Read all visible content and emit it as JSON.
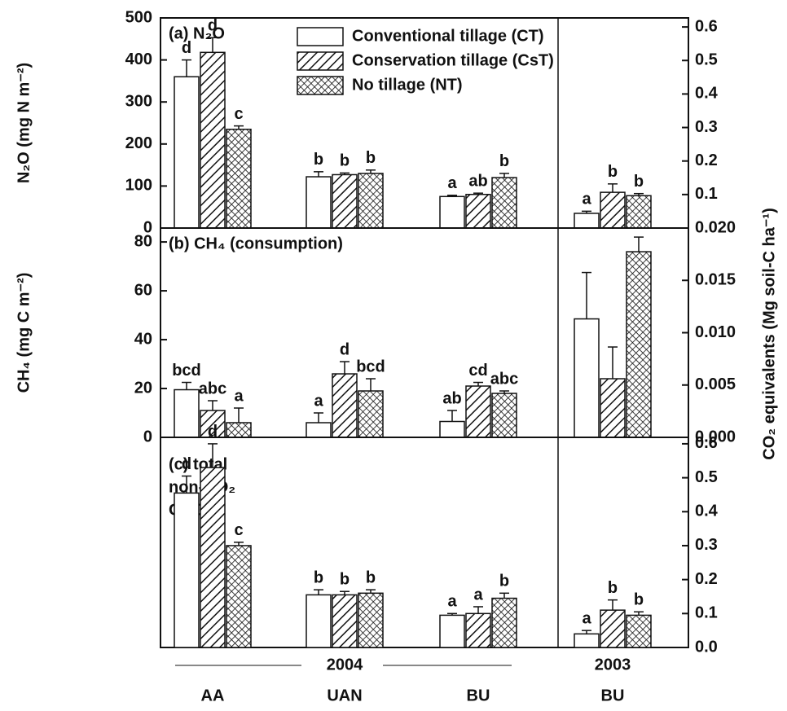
{
  "chart_data": [
    {
      "type": "bar",
      "panel_label": "(a) N₂O",
      "ylabel": "N₂O (mg N m⁻²)",
      "categories": [
        "AA",
        "UAN",
        "BU",
        "BU"
      ],
      "groups": [
        "2004",
        "2003"
      ],
      "ylim": [
        0,
        500
      ],
      "yticks": [
        0,
        100,
        200,
        300,
        400,
        500
      ],
      "y2lim": [
        0,
        0.627
      ],
      "y2ticks": [
        0.1,
        0.2,
        0.3,
        0.4,
        0.5,
        0.6
      ],
      "series": [
        {
          "name": "Conventional tillage (CT)",
          "color": "#ffffff",
          "pattern": "none",
          "values": [
            360,
            122,
            75,
            35
          ],
          "errors": [
            40,
            12,
            3,
            5
          ],
          "letters": [
            "d",
            "b",
            "a",
            "a"
          ]
        },
        {
          "name": "Conservation tillage (CsT)",
          "color": "#ffffff",
          "pattern": "hatch",
          "values": [
            418,
            127,
            80,
            85
          ],
          "errors": [
            35,
            4,
            3,
            20
          ],
          "letters": [
            "d",
            "b",
            "ab",
            "b"
          ]
        },
        {
          "name": "No tillage (NT)",
          "color": "#ffffff",
          "pattern": "crosshatch",
          "values": [
            235,
            130,
            120,
            77
          ],
          "errors": [
            8,
            8,
            10,
            5
          ],
          "letters": [
            "c",
            "b",
            "b",
            "b"
          ]
        }
      ]
    },
    {
      "type": "bar",
      "panel_label": "(b) CH₄ (consumption)",
      "ylabel": "CH₄ (mg C m⁻²)",
      "y2label": "CO₂ equivalents (Mg soil-C ha⁻¹)",
      "ylim": [
        0,
        85.7
      ],
      "yticks": [
        0,
        20,
        40,
        60,
        80
      ],
      "y2lim": [
        0,
        0.02
      ],
      "y2ticks": [
        {
          "value": 0,
          "label": "0.000"
        },
        0.005,
        {
          "value": 0.01,
          "label": "0.010"
        },
        0.015,
        {
          "value": 0.02,
          "label": "0.020"
        }
      ],
      "series": [
        {
          "color": "#ffffff",
          "pattern": "none",
          "values": [
            19.5,
            6,
            6.5,
            48.5
          ],
          "errors": [
            3,
            4,
            4.5,
            19
          ],
          "letters": [
            "bcd",
            "a",
            "ab",
            null
          ]
        },
        {
          "color": "#ffffff",
          "pattern": "hatch",
          "values": [
            11,
            26,
            21,
            24
          ],
          "errors": [
            4,
            5,
            1.5,
            13
          ],
          "letters": [
            "abc",
            "d",
            "cd",
            null
          ]
        },
        {
          "color": "#ffffff",
          "pattern": "crosshatch",
          "values": [
            6,
            19,
            18,
            76
          ],
          "errors": [
            6,
            5,
            1,
            6
          ],
          "letters": [
            "a",
            "bcd",
            "abc",
            null
          ]
        }
      ]
    },
    {
      "type": "bar",
      "panel_label": [
        "(c) total",
        "non-CO₂",
        "GHG"
      ],
      "y2lim": [
        0,
        0.619
      ],
      "y2ticks": [
        {
          "value": 0,
          "label": "0.0"
        },
        0.1,
        0.2,
        0.3,
        0.4,
        0.5,
        0.6
      ],
      "series": [
        {
          "axis": "y2",
          "color": "#ffffff",
          "pattern": "none",
          "values": [
            0.455,
            0.155,
            0.095,
            0.04
          ],
          "errors": [
            0.05,
            0.015,
            0.005,
            0.01
          ],
          "letters": [
            "d",
            "b",
            "a",
            "a"
          ]
        },
        {
          "axis": "y2",
          "color": "#ffffff",
          "pattern": "hatch",
          "values": [
            0.53,
            0.155,
            0.1,
            0.11
          ],
          "errors": [
            0.07,
            0.01,
            0.02,
            0.03
          ],
          "letters": [
            "d",
            "b",
            "a",
            "b"
          ]
        },
        {
          "axis": "y2",
          "color": "#ffffff",
          "pattern": "crosshatch",
          "values": [
            0.3,
            0.16,
            0.145,
            0.095
          ],
          "errors": [
            0.01,
            0.01,
            0.015,
            0.01
          ],
          "letters": [
            "c",
            "b",
            "b",
            "b"
          ]
        }
      ]
    }
  ]
}
